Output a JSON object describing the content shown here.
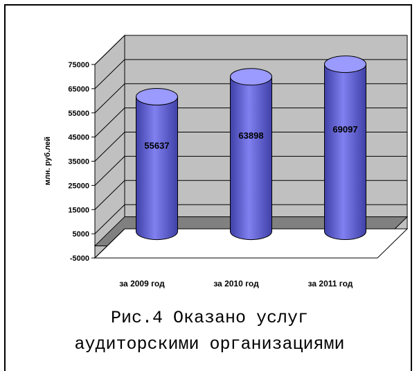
{
  "chart_data": {
    "type": "bar",
    "style": "3d-cylinder",
    "categories": [
      "за 2009 год",
      "за 2010 год",
      "за 2011 год"
    ],
    "values": [
      55637,
      63898,
      69097
    ],
    "value_labels": [
      "55637",
      "63898",
      "69097"
    ],
    "ylabel": "млн. руб.лей",
    "ylim": [
      -5000,
      75000
    ],
    "yticks": [
      -5000,
      5000,
      15000,
      25000,
      35000,
      45000,
      55000,
      65000,
      75000
    ],
    "ytick_labels": [
      "-5000",
      "5000",
      "15000",
      "25000",
      "35000",
      "45000",
      "55000",
      "65000",
      "75000"
    ],
    "grid": true,
    "legend": "none"
  },
  "colors": {
    "bar": "#8080f0",
    "bar_dark": "#4040a8",
    "bar_top": "#9a9aff",
    "wall": "#c0c0c0",
    "floor": "#808080"
  },
  "caption": {
    "line1": "Рис.4 Оказано услуг",
    "line2": "аудиторскими организациями"
  }
}
